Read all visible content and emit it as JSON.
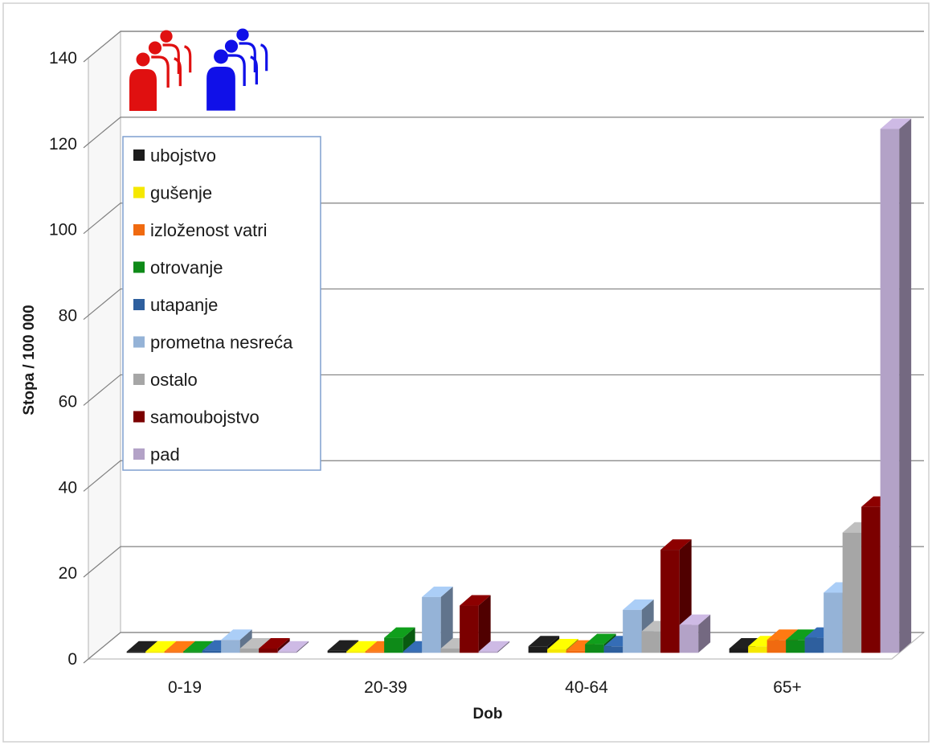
{
  "chart_data": {
    "type": "bar",
    "title": "",
    "xlabel": "Dob",
    "ylabel": "Stopa / 100 000",
    "ylim": [
      0,
      140
    ],
    "yticks": [
      "0",
      "20",
      "40",
      "60",
      "80",
      "100",
      "120",
      "140"
    ],
    "categories": [
      "0-19",
      "20-39",
      "40-64",
      "65+"
    ],
    "grid": true,
    "three_d": true,
    "legend_position": "top-left",
    "series": [
      {
        "name": "ubojstvo",
        "color": "#1c1c1c",
        "values": [
          0.3,
          0.5,
          1.5,
          1.0
        ]
      },
      {
        "name": "gušenje",
        "color": "#f5e800",
        "values": [
          0.3,
          0.3,
          0.8,
          1.5
        ]
      },
      {
        "name": "izloženost vatri",
        "color": "#f06a10",
        "values": [
          0.3,
          0.2,
          0.5,
          3.0
        ]
      },
      {
        "name": "otrovanje",
        "color": "#0e8a18",
        "values": [
          0.3,
          3.5,
          2.0,
          3.0
        ]
      },
      {
        "name": "utapanje",
        "color": "#2e5f9e",
        "values": [
          0.5,
          0.3,
          1.5,
          3.5
        ]
      },
      {
        "name": "prometna nesreća",
        "color": "#95b3d7",
        "values": [
          3.0,
          13.0,
          10.0,
          14.0
        ]
      },
      {
        "name": "ostalo",
        "color": "#a6a6a6",
        "values": [
          1.0,
          1.0,
          5.0,
          28.0
        ]
      },
      {
        "name": "samoubojstvo",
        "color": "#7b0000",
        "values": [
          1.0,
          11.0,
          24.0,
          34.0
        ]
      },
      {
        "name": "pad",
        "color": "#b3a2c7",
        "values": [
          0.2,
          0.3,
          6.5,
          122.0
        ]
      }
    ]
  },
  "decor": {
    "female_icon_color": "#e01010",
    "male_icon_color": "#1010e8",
    "female_icon": "woman-figures-icon",
    "male_icon": "man-figures-icon"
  }
}
